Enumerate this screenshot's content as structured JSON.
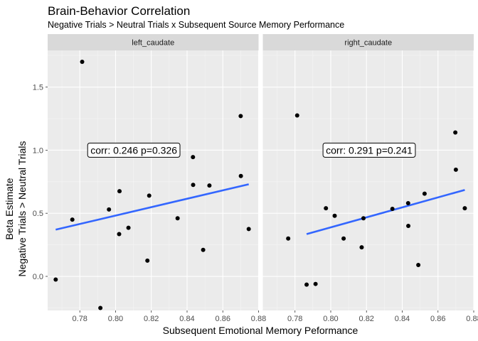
{
  "chart_data": {
    "type": "scatter",
    "title": "Brain-Behavior Correlation",
    "subtitle": "Negative Trials > Neutral Trials x Subsequent Source Memory Performance",
    "xlabel": "Subsequent Emotional Memory Peformance",
    "ylabel": [
      "Beta Estimate",
      "Negative Trials > Neutral Trials"
    ],
    "xlim": [
      0.762,
      0.88
    ],
    "ylim": [
      -0.27,
      1.79
    ],
    "x_ticks": [
      0.78,
      0.8,
      0.82,
      0.84,
      0.86,
      0.88
    ],
    "x_tick_labels": [
      "0.78",
      "0.80",
      "0.82",
      "0.84",
      "0.86",
      "0.88"
    ],
    "y_ticks": [
      0.0,
      0.5,
      1.0,
      1.5
    ],
    "y_tick_labels": [
      "0.0",
      "0.5",
      "1.0",
      "1.5"
    ],
    "grid": true,
    "panels": [
      {
        "name": "left_caudate",
        "annotation": "corr: 0.246 p=0.326",
        "annotation_pos": {
          "x": 0.8102,
          "y": 1.0
        },
        "fit_line": {
          "x": [
            0.7665,
            0.8745
          ],
          "y": [
            0.37,
            0.73
          ]
        },
        "points": [
          {
            "x": 0.7665,
            "y": -0.025
          },
          {
            "x": 0.7758,
            "y": 0.45
          },
          {
            "x": 0.7813,
            "y": 1.7
          },
          {
            "x": 0.7915,
            "y": -0.25
          },
          {
            "x": 0.7963,
            "y": 0.53
          },
          {
            "x": 0.802,
            "y": 0.335
          },
          {
            "x": 0.8022,
            "y": 0.675
          },
          {
            "x": 0.8072,
            "y": 0.385
          },
          {
            "x": 0.8178,
            "y": 0.125
          },
          {
            "x": 0.8188,
            "y": 0.64
          },
          {
            "x": 0.8347,
            "y": 0.46
          },
          {
            "x": 0.8433,
            "y": 0.945
          },
          {
            "x": 0.8434,
            "y": 0.725
          },
          {
            "x": 0.849,
            "y": 0.21
          },
          {
            "x": 0.8525,
            "y": 0.72
          },
          {
            "x": 0.87,
            "y": 1.27
          },
          {
            "x": 0.8701,
            "y": 0.795
          },
          {
            "x": 0.8745,
            "y": 0.375
          }
        ]
      },
      {
        "name": "right_caudate",
        "annotation": "corr: 0.291 p=0.241",
        "annotation_pos": {
          "x": 0.8215,
          "y": 1.0
        },
        "fit_line": {
          "x": [
            0.7865,
            0.875
          ],
          "y": [
            0.335,
            0.685
          ]
        },
        "points": [
          {
            "x": 0.7865,
            "y": -0.065
          },
          {
            "x": 0.7762,
            "y": 0.3
          },
          {
            "x": 0.7812,
            "y": 1.275
          },
          {
            "x": 0.7915,
            "y": -0.06
          },
          {
            "x": 0.7973,
            "y": 0.54
          },
          {
            "x": 0.8022,
            "y": 0.48
          },
          {
            "x": 0.8072,
            "y": 0.3
          },
          {
            "x": 0.8173,
            "y": 0.23
          },
          {
            "x": 0.8183,
            "y": 0.46
          },
          {
            "x": 0.8345,
            "y": 0.535
          },
          {
            "x": 0.8433,
            "y": 0.58
          },
          {
            "x": 0.8434,
            "y": 0.4
          },
          {
            "x": 0.849,
            "y": 0.09
          },
          {
            "x": 0.8525,
            "y": 0.655
          },
          {
            "x": 0.8697,
            "y": 1.14
          },
          {
            "x": 0.87,
            "y": 0.845
          },
          {
            "x": 0.875,
            "y": 0.54
          }
        ]
      }
    ],
    "colors": {
      "panel_bg": "#ebebeb",
      "grid_major": "#ffffff",
      "grid_minor": "#f5f5f5",
      "strip_bg": "#d9d9d9",
      "points": "#000000",
      "fit_line": "#3366ff",
      "tick_text": "#4d4d4d"
    }
  }
}
